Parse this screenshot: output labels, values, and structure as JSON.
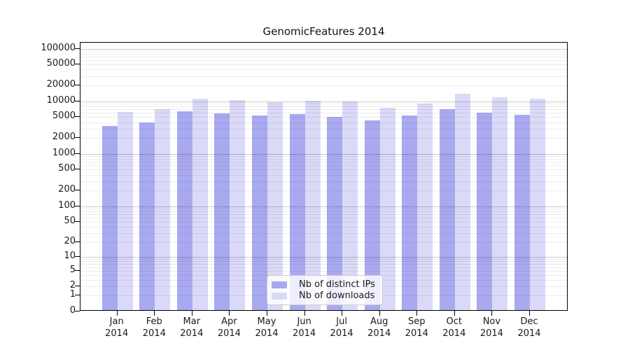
{
  "title": "GenomicFeatures 2014",
  "colors": {
    "ips_bar": "#a9a9f0",
    "downloads_bar": "#dadaf8",
    "grid_minor": "rgba(0,0,0,0.07)",
    "grid_major": "rgba(0,0,0,0.20)",
    "axis": "#000000",
    "text": "#1a1a1a"
  },
  "legend": {
    "items": [
      {
        "label": "Nb of distinct IPs",
        "series_key": "ips"
      },
      {
        "label": "Nb of downloads",
        "series_key": "downloads"
      }
    ]
  },
  "chart_data": {
    "type": "bar",
    "title": "GenomicFeatures 2014",
    "categories": [
      "Jan",
      "Feb",
      "Mar",
      "Apr",
      "May",
      "Jun",
      "Jul",
      "Aug",
      "Sep",
      "Oct",
      "Nov",
      "Dec"
    ],
    "year": "2014",
    "series": [
      {
        "name": "Nb of distinct IPs",
        "values": [
          3200,
          3700,
          6100,
          5600,
          5000,
          5400,
          4750,
          4100,
          5000,
          6600,
          5650,
          5200
        ]
      },
      {
        "name": "Nb of downloads",
        "values": [
          5900,
          6600,
          10400,
          10000,
          9100,
          9600,
          9400,
          7100,
          8500,
          13000,
          11300,
          10600
        ]
      }
    ],
    "y_scale": "log1p",
    "y_ticks": [
      0,
      1,
      2,
      5,
      10,
      20,
      50,
      100,
      200,
      500,
      1000,
      2000,
      5000,
      10000,
      20000,
      50000,
      100000
    ],
    "ylim": [
      0,
      130000
    ],
    "grid": true,
    "legend_position": "bottom-center"
  }
}
